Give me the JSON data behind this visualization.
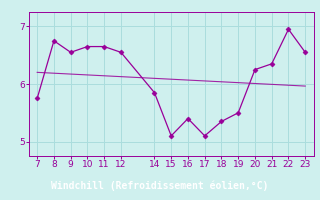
{
  "x": [
    7,
    8,
    9,
    10,
    11,
    12,
    14,
    15,
    16,
    17,
    18,
    19,
    20,
    21,
    22,
    23
  ],
  "y": [
    5.75,
    6.75,
    6.55,
    6.65,
    6.65,
    6.55,
    5.85,
    5.1,
    5.4,
    5.1,
    5.35,
    5.5,
    6.25,
    6.35,
    6.95,
    6.55
  ],
  "line_color": "#990099",
  "marker_color": "#990099",
  "bg_color": "#cff0ee",
  "grid_color": "#aadddd",
  "xlabel": "Windchill (Refroidissement éolien,°C)",
  "xlabel_bg": "#990099",
  "xlabel_text_color": "#ffffff",
  "ylim": [
    4.75,
    7.25
  ],
  "xlim": [
    6.5,
    23.5
  ],
  "yticks": [
    5,
    6,
    7
  ],
  "xticks": [
    7,
    8,
    9,
    10,
    11,
    12,
    14,
    15,
    16,
    17,
    18,
    19,
    20,
    21,
    22,
    23
  ],
  "tick_color": "#990099",
  "tick_fontsize": 6.5,
  "xlabel_fontsize": 7,
  "regression_color": "#990099",
  "spine_color": "#990099"
}
